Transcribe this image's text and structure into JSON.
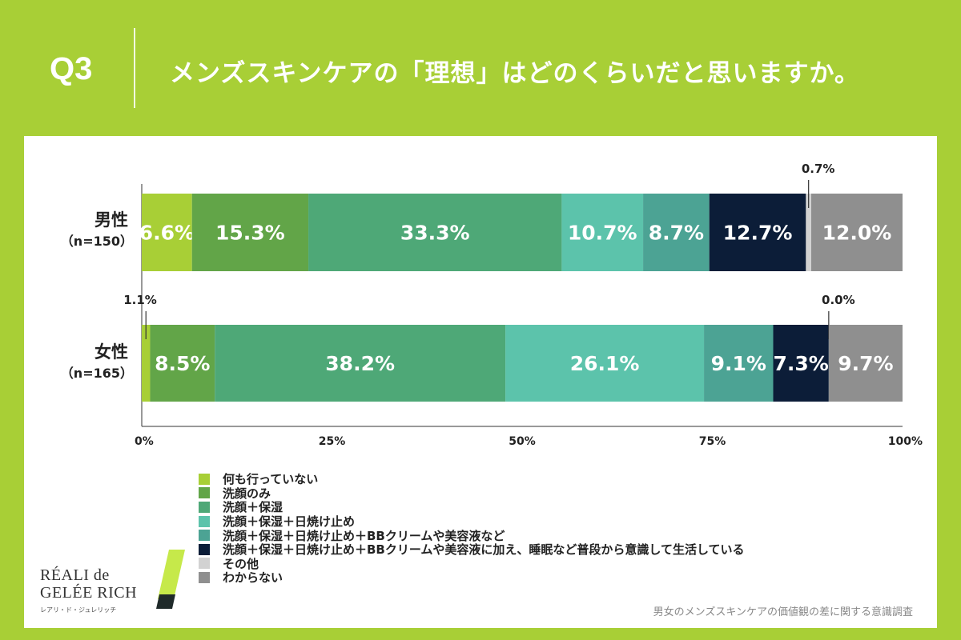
{
  "header": {
    "q_label": "Q3",
    "title": "メンズスキンケアの「理想」はどのくらいだと思いますか。"
  },
  "colors": {
    "page_bg": "#a8cf36",
    "segments": [
      "#a8cf36",
      "#62a548",
      "#4ea877",
      "#5cc3ab",
      "#4ca394",
      "#0c1d38",
      "#d2d2d2",
      "#8f8f8f"
    ]
  },
  "chart_data": {
    "type": "stacked-bar-horizontal-100",
    "categories": [
      "何も行っていない",
      "洗顔のみ",
      "洗顔＋保湿",
      "洗顔＋保湿＋日焼け止め",
      "洗顔＋保湿＋日焼け止め＋BBクリームや美容液など",
      "洗顔＋保湿＋日焼け止め＋BBクリームや美容液に加え、睡眠など普段から意識して生活している",
      "その他",
      "わからない"
    ],
    "series": [
      {
        "name": "男性",
        "sample": "（n=150）",
        "values": [
          6.6,
          15.3,
          33.3,
          10.7,
          8.7,
          12.7,
          0.7,
          12.0
        ],
        "labels": [
          "6.6%",
          "15.3%",
          "33.3%",
          "10.7%",
          "8.7%",
          "12.7%",
          "0.7%",
          "12.0%"
        ]
      },
      {
        "name": "女性",
        "sample": "（n=165）",
        "values": [
          1.1,
          8.5,
          38.2,
          26.1,
          9.1,
          7.3,
          0.0,
          9.7
        ],
        "labels": [
          "1.1%",
          "8.5%",
          "38.2%",
          "26.1%",
          "9.1%",
          "7.3%",
          "0.0%",
          "9.7%"
        ]
      }
    ],
    "x_ticks": [
      "0%",
      "25%",
      "50%",
      "75%",
      "100%"
    ],
    "xlim": [
      0,
      100
    ],
    "legend_position": "bottom"
  },
  "logo": {
    "line1": "RÉALI de",
    "line2": "GELÉE RICH",
    "kana": "レアリ・ド・ジュレリッチ"
  },
  "source": "男女のメンズスキンケアの価値観の差に関する意識調査"
}
